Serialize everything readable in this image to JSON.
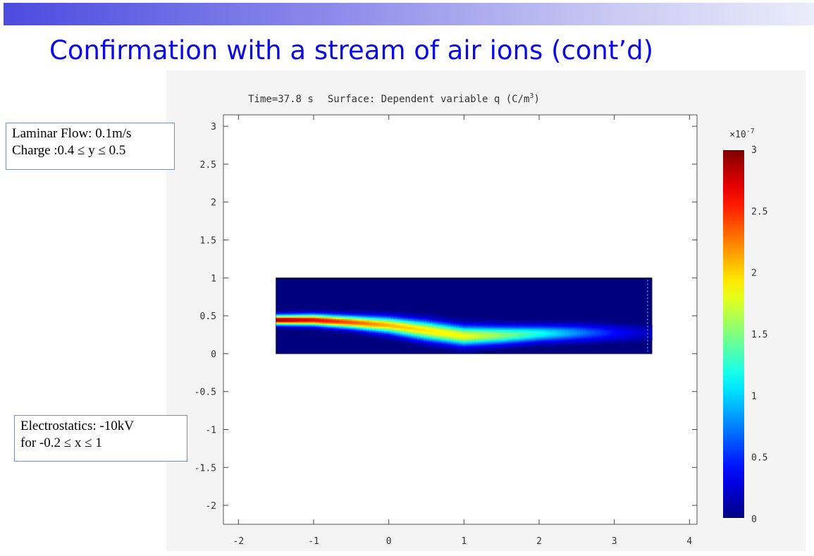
{
  "slide": {
    "title": "Confirmation with a stream of air ions (cont’d)"
  },
  "notes": {
    "laminar": [
      "Laminar Flow: 0.1m/s",
      "Charge :0.4 ≤ y ≤ 0.5"
    ],
    "electro": [
      "Electrostatics: -10kV",
      "for -0.2 ≤ x ≤ 1"
    ]
  },
  "colors": {
    "title": "#0a0ae6",
    "domain_background": "#00007f",
    "colormap": [
      "#00007f",
      "#0000ff",
      "#00ffff",
      "#ffff00",
      "#ff0000",
      "#7f0000"
    ]
  },
  "chart_data": {
    "type": "heatmap",
    "title_parts": [
      "Time=37.8 s",
      "Surface: Dependent variable q (C/m",
      "3",
      ")"
    ],
    "xlim": [
      -2.2,
      4.1
    ],
    "ylim": [
      -2.25,
      3.15
    ],
    "x_ticks": [
      -2,
      -1,
      0,
      1,
      2,
      3,
      4
    ],
    "x_tick_labels": [
      "-2",
      "-1",
      "0",
      "1",
      "2",
      "3",
      "4"
    ],
    "y_ticks": [
      3,
      2.5,
      2,
      1.5,
      1,
      0.5,
      0,
      -0.5,
      -1,
      -1.5,
      -2
    ],
    "y_tick_labels": [
      "3",
      "2.5",
      "2",
      "1.5",
      "1",
      "0.5",
      "0",
      "-0.5",
      "-1",
      "-1.5",
      "-2"
    ],
    "domain": {
      "x": [
        -1.5,
        3.5
      ],
      "y": [
        0,
        1
      ]
    },
    "plume": {
      "x": [
        -1.5,
        -1.0,
        -0.5,
        0.0,
        0.5,
        1.0,
        1.5,
        2.0,
        2.5,
        3.0,
        3.5
      ],
      "y_center": [
        0.45,
        0.45,
        0.42,
        0.38,
        0.31,
        0.24,
        0.25,
        0.27,
        0.28,
        0.28,
        0.28
      ],
      "peak": [
        3.0,
        2.7,
        2.4,
        2.1,
        1.95,
        1.85,
        1.55,
        1.2,
        0.8,
        0.4,
        0.15
      ],
      "half_width": [
        0.06,
        0.07,
        0.08,
        0.1,
        0.12,
        0.12,
        0.11,
        0.1,
        0.1,
        0.1,
        0.1
      ]
    },
    "colorbar": {
      "scale_label_base": "×10",
      "scale_label_exp": "-7",
      "min": 0,
      "max": 3,
      "ticks": [
        0,
        0.5,
        1,
        1.5,
        2,
        2.5,
        3
      ],
      "tick_labels": [
        "0",
        "0.5",
        "1",
        "1.5",
        "2",
        "2.5",
        "3"
      ]
    }
  }
}
